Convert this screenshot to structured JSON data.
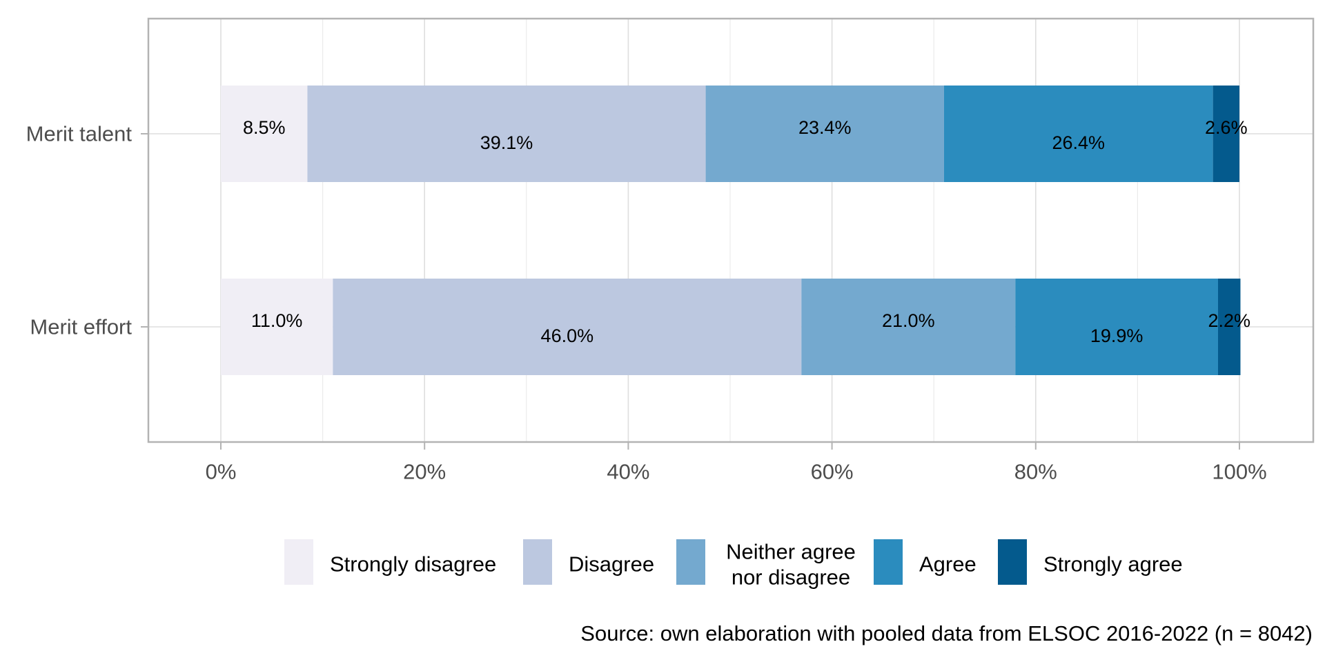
{
  "chart_data": {
    "type": "bar",
    "orientation": "horizontal",
    "stacked": true,
    "categories": [
      "Merit talent",
      "Merit effort"
    ],
    "series": [
      {
        "name": "Strongly disagree",
        "values": [
          8.5,
          11.0
        ],
        "labels": [
          "8.5%",
          "11.0%"
        ],
        "color": "#f0eef5"
      },
      {
        "name": "Disagree",
        "values": [
          39.1,
          46.0
        ],
        "labels": [
          "39.1%",
          "46.0%"
        ],
        "color": "#bcc8e0"
      },
      {
        "name": "Neither agree nor disagree",
        "legend_lines": [
          "Neither agree",
          "nor disagree"
        ],
        "values": [
          23.4,
          21.0
        ],
        "labels": [
          "23.4%",
          "21.0%"
        ],
        "color": "#74a9cf"
      },
      {
        "name": "Agree",
        "values": [
          26.4,
          19.9
        ],
        "labels": [
          "26.4%",
          "19.9%"
        ],
        "color": "#2b8cbe"
      },
      {
        "name": "Strongly agree",
        "values": [
          2.6,
          2.2
        ],
        "labels": [
          "2.6%",
          "2.2%"
        ],
        "color": "#045a8d"
      }
    ],
    "xlim": [
      0,
      100
    ],
    "xticks": [
      0,
      20,
      40,
      60,
      80,
      100
    ],
    "xtick_labels": [
      "0%",
      "20%",
      "40%",
      "60%",
      "80%",
      "100%"
    ],
    "grid": true,
    "legend_position": "bottom",
    "caption": "Source: own elaboration with pooled data from ELSOC 2016-2022 (n = 8042)"
  }
}
